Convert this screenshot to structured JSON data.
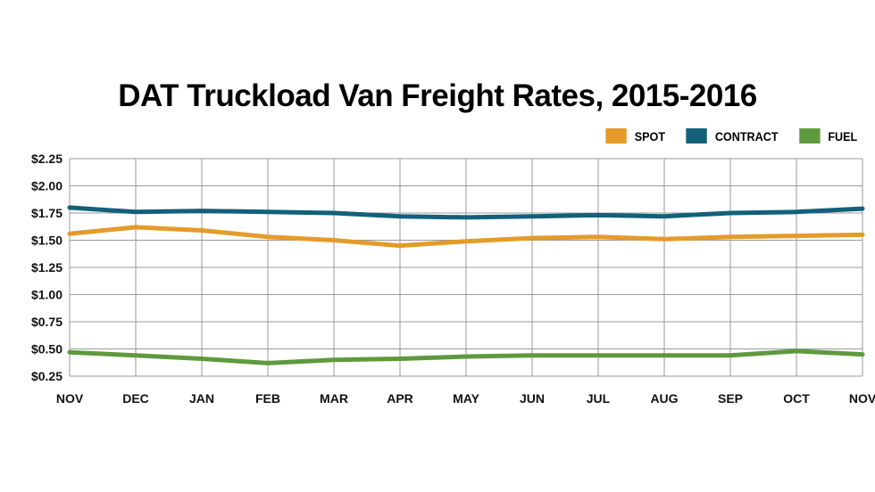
{
  "chart_data": {
    "type": "line",
    "title": "DAT Truckload Van Freight Rates, 2015-2016",
    "xlabel": "",
    "ylabel": "",
    "categories": [
      "NOV",
      "DEC",
      "JAN",
      "FEB",
      "MAR",
      "APR",
      "MAY",
      "JUN",
      "JUL",
      "AUG",
      "SEP",
      "OCT",
      "NOV"
    ],
    "ylim": [
      0.25,
      2.25
    ],
    "yticks": [
      "$2.25",
      "$2.00",
      "$1.75",
      "$1.50",
      "$1.25",
      "$1.00",
      "$0.75",
      "$0.50",
      "$0.25"
    ],
    "ytick_values": [
      2.25,
      2.0,
      1.75,
      1.5,
      1.25,
      1.0,
      0.75,
      0.5,
      0.25
    ],
    "grid": true,
    "legend_position": "top-right",
    "series": [
      {
        "name": "SPOT",
        "color": "#E49B2A",
        "values": [
          1.56,
          1.62,
          1.59,
          1.53,
          1.5,
          1.45,
          1.49,
          1.52,
          1.53,
          1.51,
          1.53,
          1.54,
          1.55
        ]
      },
      {
        "name": "CONTRACT",
        "color": "#12607A",
        "values": [
          1.8,
          1.76,
          1.77,
          1.76,
          1.75,
          1.72,
          1.71,
          1.72,
          1.73,
          1.72,
          1.75,
          1.76,
          1.79
        ]
      },
      {
        "name": "FUEL",
        "color": "#5E9A3D",
        "values": [
          0.47,
          0.44,
          0.41,
          0.37,
          0.4,
          0.41,
          0.43,
          0.44,
          0.44,
          0.44,
          0.44,
          0.48,
          0.45
        ]
      }
    ]
  }
}
